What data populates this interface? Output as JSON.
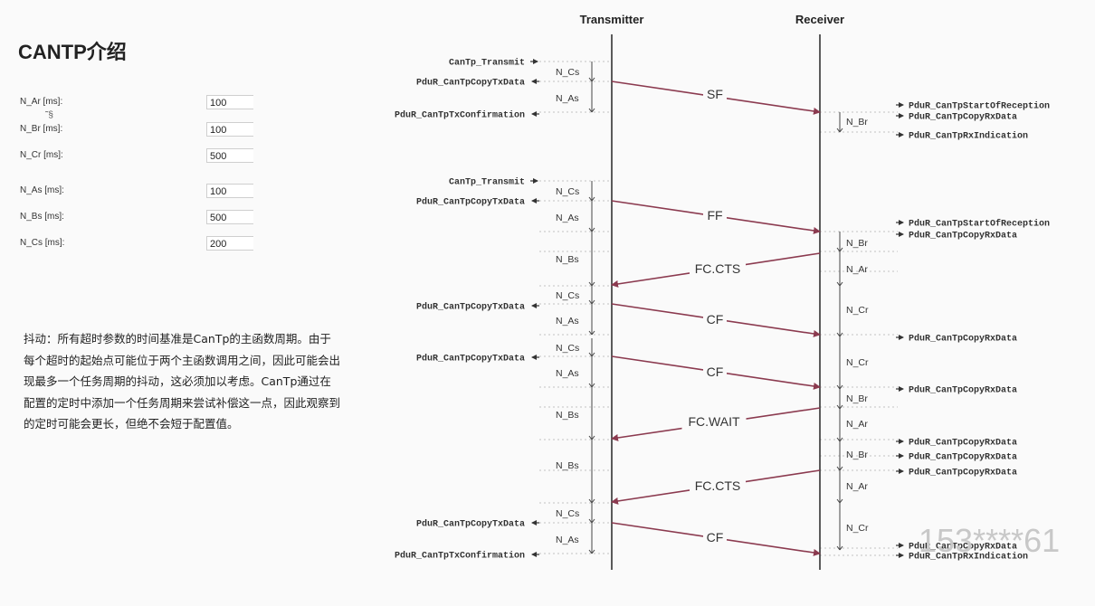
{
  "title": "CANTP介绍",
  "params": [
    {
      "label": "N_Ar [ms]:",
      "value": "100"
    },
    {
      "label": "N_Br [ms]:",
      "value": "100"
    },
    {
      "label": "N_Cr [ms]:",
      "value": "500"
    },
    {
      "label": "N_As [ms]:",
      "value": "100"
    },
    {
      "label": "N_Bs [ms]:",
      "value": "500"
    },
    {
      "label": "N_Cs [ms]:",
      "value": "200"
    }
  ],
  "description": "抖动：所有超时参数的时间基准是CanTp的主函数周期。由于每个超时的起始点可能位于两个主函数调用之间，因此可能会出现最多一个任务周期的抖动，这必须加以考虑。CanTp通过在配置的定时中添加一个任务周期来尝试补偿这一点，因此观察到的定时可能会更长，但绝不会短于配置值。",
  "diagram": {
    "transmitter": "Transmitter",
    "receiver": "Receiver",
    "tx_calls": [
      {
        "text": "CanTp_Transmit",
        "dir": "in"
      },
      {
        "text": "PduR_CanTpCopyTxData",
        "dir": "out"
      },
      {
        "text": "PduR_CanTpTxConfirmation",
        "dir": "out"
      },
      {
        "text": "CanTp_Transmit",
        "dir": "in"
      },
      {
        "text": "PduR_CanTpCopyTxData",
        "dir": "out"
      },
      {
        "text": "PduR_CanTpCopyTxData",
        "dir": "out"
      },
      {
        "text": "PduR_CanTpCopyTxData",
        "dir": "out"
      },
      {
        "text": "PduR_CanTpCopyTxData",
        "dir": "out"
      },
      {
        "text": "PduR_CanTpTxConfirmation",
        "dir": "out"
      }
    ],
    "rx_calls": [
      "PduR_CanTpStartOfReception",
      "PduR_CanTpCopyRxData",
      "PduR_CanTpRxIndication",
      "PduR_CanTpStartOfReception",
      "PduR_CanTpCopyRxData",
      "PduR_CanTpCopyRxData",
      "PduR_CanTpCopyRxData",
      "PduR_CanTpCopyRxData",
      "PduR_CanTpCopyRxData",
      "PduR_CanTpCopyRxData",
      "PduR_CanTpCopyRxData",
      "PduR_CanTpRxIndication"
    ],
    "frames": [
      {
        "label": "SF",
        "dir": "tx"
      },
      {
        "label": "FF",
        "dir": "tx"
      },
      {
        "label": "FC.CTS",
        "dir": "rx"
      },
      {
        "label": "CF",
        "dir": "tx"
      },
      {
        "label": "CF",
        "dir": "tx"
      },
      {
        "label": "FC.WAIT",
        "dir": "rx"
      },
      {
        "label": "FC.CTS",
        "dir": "rx"
      },
      {
        "label": "CF",
        "dir": "tx"
      }
    ],
    "tx_timers": [
      "N_Cs",
      "N_As",
      "N_Cs",
      "N_As",
      "N_Bs",
      "N_Cs",
      "N_As",
      "N_Cs",
      "N_As",
      "N_Bs",
      "N_Bs",
      "N_Cs",
      "N_As"
    ],
    "rx_timers": [
      "N_Br",
      "N_Br",
      "N_Ar",
      "N_Cr",
      "N_Cr",
      "N_Br",
      "N_Ar",
      "N_Br",
      "N_Ar",
      "N_Cr"
    ]
  },
  "watermark": "153****61",
  "colors": {
    "frame_arrow": "#8b3a4f",
    "lifeline": "#333333",
    "dashed": "#b0b0b0"
  }
}
